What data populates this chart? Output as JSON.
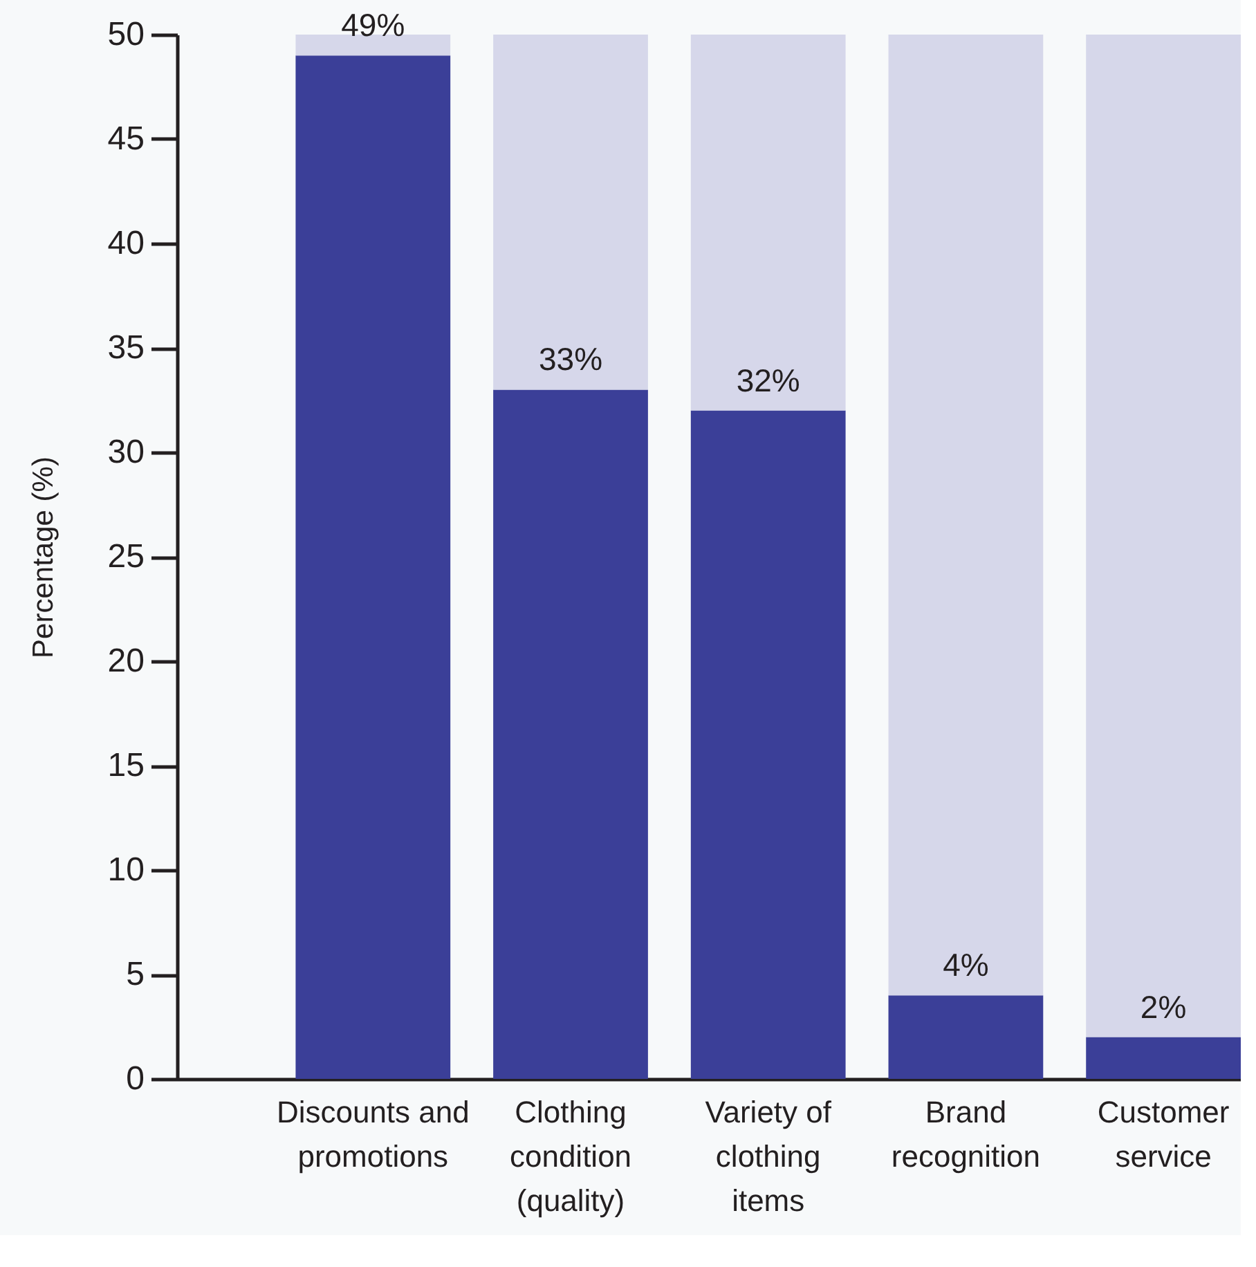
{
  "chart_data": {
    "type": "bar",
    "ylabel": "Percentage (%)",
    "categories": [
      "Discounts and promotions",
      "Clothing condition (quality)",
      "Variety of clothing items",
      "Brand recognition",
      "Customer service"
    ],
    "stacked": true,
    "series": [
      {
        "color": "#3b3f98",
        "values": [
          49,
          33,
          32,
          4,
          2
        ],
        "value_labels": [
          "49%",
          "33%",
          "32%",
          "4%",
          "2%"
        ]
      },
      {
        "color": "#d6d7ea",
        "values": [
          1,
          17,
          18,
          46,
          48
        ]
      }
    ],
    "ylim": [
      0,
      50
    ],
    "yticks": [
      0,
      5,
      10,
      15,
      20,
      25,
      30,
      35,
      40,
      45,
      50
    ]
  }
}
